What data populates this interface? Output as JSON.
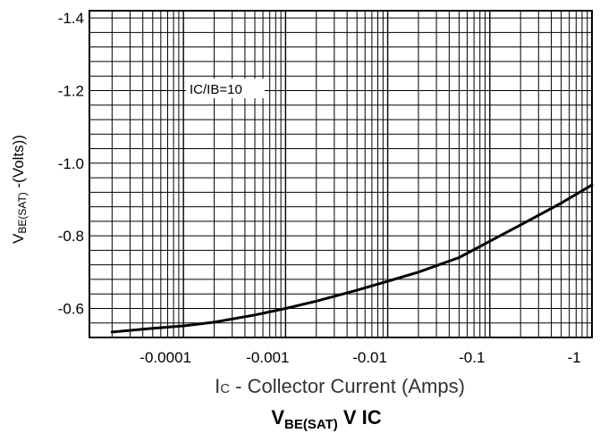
{
  "chart_data": {
    "type": "line",
    "title": "VBE(SAT) V IC",
    "title_main": "V",
    "title_sub": "BE(SAT)",
    "title_rest": " V IC",
    "xlabel": "IC - Collector Current (Amps)",
    "xlabel_i": "I",
    "xlabel_c": "C",
    "xlabel_rest": " - Collector Current (Amps)",
    "ylabel": "VBE(SAT) -(Volts))",
    "ylabel_main": "V",
    "ylabel_sub": "BE(SAT)",
    "ylabel_rest": " -(Volts))",
    "annotation": "IC/IB=10",
    "x_scale": "log",
    "xlim": [
      -1.2e-05,
      -1
    ],
    "ylim": [
      -0.52,
      -1.42
    ],
    "grid": true,
    "x_ticks": [
      {
        "value": -0.0001,
        "label": "-0.0001"
      },
      {
        "value": -0.001,
        "label": "-0.001"
      },
      {
        "value": -0.01,
        "label": "-0.01"
      },
      {
        "value": -0.1,
        "label": "-0.1"
      },
      {
        "value": -1,
        "label": "-1"
      }
    ],
    "y_ticks": [
      {
        "value": -0.6,
        "label": "-0.6"
      },
      {
        "value": -0.8,
        "label": "-0.8"
      },
      {
        "value": -1.0,
        "label": "-1.0"
      },
      {
        "value": -1.2,
        "label": "-1.2"
      },
      {
        "value": -1.4,
        "label": "-1.4"
      }
    ],
    "series": [
      {
        "x": [
          -2e-05,
          -5e-05,
          -0.0001,
          -0.0002,
          -0.0005,
          -0.001,
          -0.002,
          -0.005,
          -0.01,
          -0.02,
          -0.05,
          -0.1,
          -0.2,
          -0.5,
          -1
        ],
        "y": [
          -0.535,
          -0.545,
          -0.552,
          -0.562,
          -0.582,
          -0.6,
          -0.62,
          -0.65,
          -0.675,
          -0.7,
          -0.74,
          -0.785,
          -0.83,
          -0.89,
          -0.94
        ]
      }
    ]
  }
}
